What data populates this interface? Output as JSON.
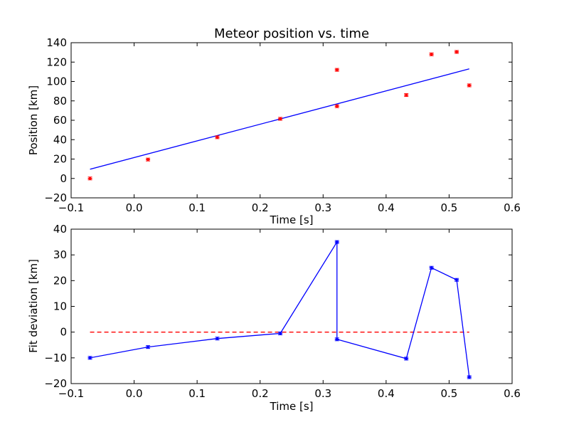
{
  "chart_data": [
    {
      "type": "scatter",
      "title": "Meteor position vs. time",
      "xlabel": "Time [s]",
      "ylabel": "Position [km]",
      "xlim": [
        -0.1,
        0.6
      ],
      "ylim": [
        -20,
        140
      ],
      "xticks": [
        "−0.1",
        "0.0",
        "0.1",
        "0.2",
        "0.3",
        "0.4",
        "0.5",
        "0.6"
      ],
      "yticks": [
        "−20",
        "0",
        "20",
        "40",
        "60",
        "80",
        "100",
        "120",
        "140"
      ],
      "grid": false,
      "colors": {
        "points": "#ff0000",
        "fit": "#0000ff"
      },
      "points": {
        "x": [
          -0.07,
          0.022,
          0.132,
          0.232,
          0.322,
          0.322,
          0.432,
          0.472,
          0.512,
          0.532
        ],
        "y": [
          0,
          19.5,
          42.5,
          61.5,
          112,
          74.5,
          86,
          128,
          130.5,
          96
        ]
      },
      "fit_line": {
        "x": [
          -0.07,
          0.532
        ],
        "y": [
          9.5,
          113
        ]
      }
    },
    {
      "type": "line",
      "title": "",
      "xlabel": "Time [s]",
      "ylabel": "Fit deviation [km]",
      "xlim": [
        -0.1,
        0.6
      ],
      "ylim": [
        -20,
        40
      ],
      "xticks": [
        "−0.1",
        "0.0",
        "0.1",
        "0.2",
        "0.3",
        "0.4",
        "0.5",
        "0.6"
      ],
      "yticks": [
        "−20",
        "−10",
        "0",
        "10",
        "20",
        "30",
        "40"
      ],
      "grid": false,
      "colors": {
        "series": "#0000ff",
        "zero_line": "#ff0000"
      },
      "series": {
        "x": [
          -0.07,
          0.022,
          0.132,
          0.232,
          0.322,
          0.322,
          0.432,
          0.472,
          0.512,
          0.532
        ],
        "y": [
          -10,
          -5.8,
          -2.5,
          -0.5,
          35,
          -2.8,
          -10.3,
          25,
          20.3,
          -17.5
        ]
      },
      "zero_line": {
        "x": [
          -0.07,
          0.532
        ],
        "y": [
          0,
          0
        ]
      }
    }
  ]
}
